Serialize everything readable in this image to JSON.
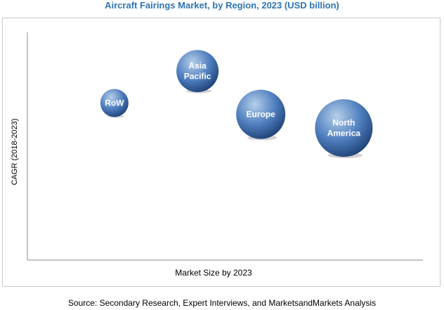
{
  "chart_data": {
    "type": "bubble",
    "title": "Aircraft Fairings Market, by Region, 2023 (USD billion)",
    "xlabel": "Market Size by 2023",
    "ylabel": "CAGR (2018-2023)",
    "xlim": [
      0,
      100
    ],
    "ylim": [
      0,
      100
    ],
    "grid": false,
    "legend": "none",
    "series": [
      {
        "label_lines": [
          "RoW"
        ],
        "x": 22,
        "y": 69,
        "size": 20
      },
      {
        "label_lines": [
          "Asia",
          "Pacific"
        ],
        "x": 43,
        "y": 83,
        "size": 30
      },
      {
        "label_lines": [
          "Europe"
        ],
        "x": 59,
        "y": 64,
        "size": 35
      },
      {
        "label_lines": [
          "North",
          "America"
        ],
        "x": 80,
        "y": 58,
        "size": 41
      }
    ],
    "colors": {
      "bubble_light": "#b6cfe9",
      "bubble_mid": "#4f7fbf",
      "bubble_dark": "#1d3f73",
      "title": "#2e74b5"
    }
  },
  "source": "Source: Secondary Research, Expert Interviews, and MarketsandMarkets Analysis"
}
